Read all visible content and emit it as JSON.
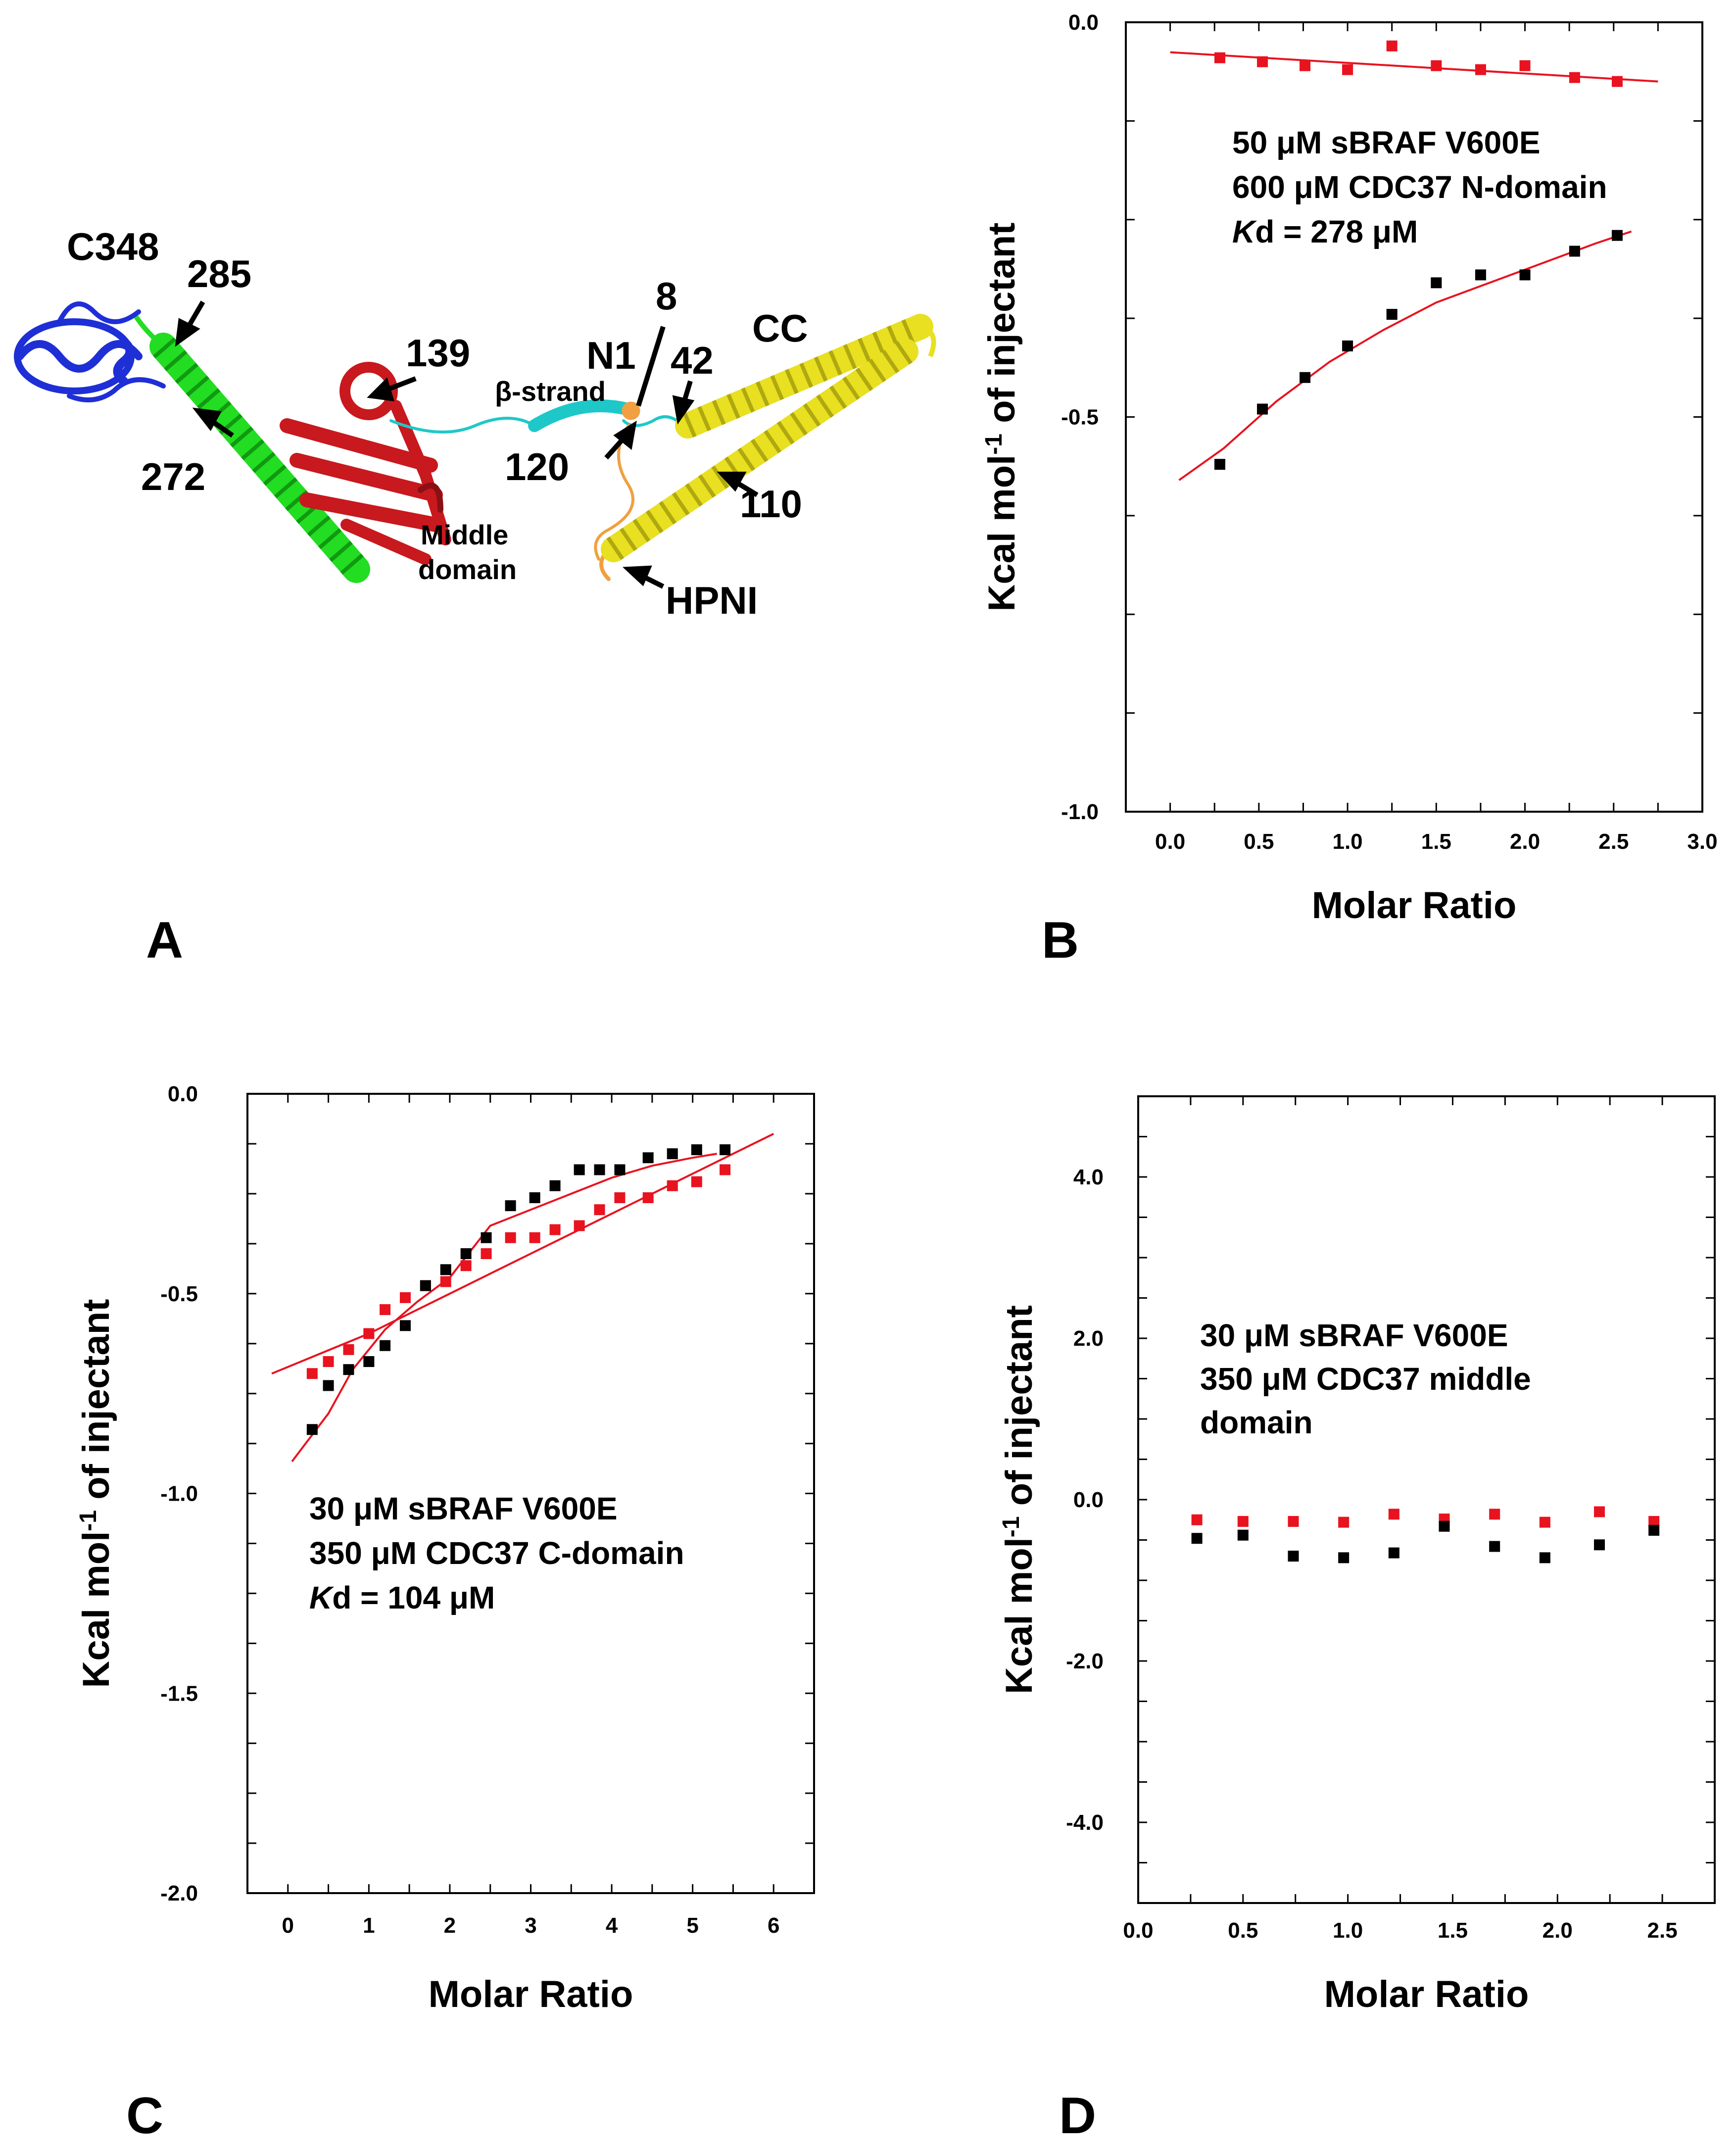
{
  "figure": {
    "panel_labels": [
      "A",
      "B",
      "C",
      "D"
    ]
  },
  "panel_a": {
    "labels": {
      "c348": "C348",
      "n285": "285",
      "n272": "272",
      "n139": "139",
      "beta": "β-strand",
      "n1": "N1",
      "n8": "8",
      "n42": "42",
      "cc": "CC",
      "n120": "120",
      "n110": "110",
      "middle1": "Middle",
      "middle2": "domain",
      "hpni": "HPNI"
    },
    "colors": {
      "c_domain": "#1f2fd6",
      "linker_helix": "#22dd22",
      "middle_domain": "#c8191e",
      "beta_strand": "#1ec8c8",
      "n_terminus": "#f0a040",
      "coiled_coil": "#e8e020"
    }
  },
  "chart_data": [
    {
      "panel": "B",
      "type": "scatter",
      "xlabel": "Molar Ratio",
      "ylabel": "Kcal mol-1 of injectant",
      "ylabel_parts": {
        "pre": "Kcal mol",
        "sup": "-1",
        "post": " of injectant"
      },
      "xlim": [
        -0.25,
        3.0
      ],
      "ylim": [
        -1.0,
        0.0
      ],
      "xticks": [
        0.0,
        0.5,
        1.0,
        1.5,
        2.0,
        2.5,
        3.0
      ],
      "xtick_labels": [
        "0.0",
        "0.5",
        "1.0",
        "1.5",
        "2.0",
        "2.5",
        "3.0"
      ],
      "yticks": [
        0.0,
        -0.5,
        -1.0
      ],
      "ytick_labels": [
        "0.0",
        "-0.5",
        "-1.0"
      ],
      "annotation": [
        "50 μM sBRAF V600E",
        "600 μM CDC37 N-domain",
        "Kd = 278 μM"
      ],
      "series": [
        {
          "name": "control",
          "color": "#e8131f",
          "x": [
            0.28,
            0.52,
            0.76,
            1.0,
            1.25,
            1.5,
            1.75,
            2.0,
            2.28,
            2.52
          ],
          "y": [
            -0.045,
            -0.05,
            -0.055,
            -0.06,
            -0.03,
            -0.055,
            -0.06,
            -0.055,
            -0.07,
            -0.075
          ]
        },
        {
          "name": "binding",
          "color": "#000000",
          "x": [
            0.28,
            0.52,
            0.76,
            1.0,
            1.25,
            1.5,
            1.75,
            2.0,
            2.28,
            2.52
          ],
          "y": [
            -0.56,
            -0.49,
            -0.45,
            -0.41,
            -0.37,
            -0.33,
            -0.32,
            -0.32,
            -0.29,
            -0.27
          ]
        }
      ],
      "fits": [
        {
          "name": "control-fit",
          "color": "#e8131f",
          "x": [
            0.0,
            2.75
          ],
          "y": [
            -0.038,
            -0.075
          ]
        },
        {
          "name": "binding-fit",
          "color": "#e8131f",
          "x": [
            0.05,
            0.3,
            0.6,
            0.9,
            1.2,
            1.5,
            1.8,
            2.1,
            2.4,
            2.6
          ],
          "y": [
            -0.58,
            -0.54,
            -0.48,
            -0.43,
            -0.39,
            -0.355,
            -0.33,
            -0.305,
            -0.28,
            -0.265
          ]
        }
      ]
    },
    {
      "panel": "C",
      "type": "scatter",
      "xlabel": "Molar Ratio",
      "ylabel": "Kcal mol-1 of injectant",
      "ylabel_parts": {
        "pre": "Kcal mol",
        "sup": "-1",
        "post": " of injectant"
      },
      "xlim": [
        -0.5,
        6.5
      ],
      "ylim": [
        -2.0,
        0.0
      ],
      "xticks": [
        0,
        1,
        2,
        3,
        4,
        5,
        6
      ],
      "xtick_labels": [
        "0",
        "1",
        "2",
        "3",
        "4",
        "5",
        "6"
      ],
      "yticks": [
        0.0,
        -0.5,
        -1.0,
        -1.5,
        -2.0
      ],
      "ytick_labels": [
        "0.0",
        "-0.5",
        "-1.0",
        "-1.5",
        "-2.0"
      ],
      "annotation": [
        "30 μM sBRAF V600E",
        "350 μM CDC37 C-domain",
        "Kd = 104 μM"
      ],
      "series": [
        {
          "name": "red",
          "color": "#e8131f",
          "x": [
            0.3,
            0.5,
            0.75,
            1.0,
            1.2,
            1.45,
            1.7,
            1.95,
            2.2,
            2.45,
            2.75,
            3.05,
            3.3,
            3.6,
            3.85,
            4.1,
            4.45,
            4.75,
            5.05,
            5.4
          ],
          "y": [
            -0.7,
            -0.67,
            -0.64,
            -0.6,
            -0.54,
            -0.51,
            -0.48,
            -0.47,
            -0.43,
            -0.4,
            -0.36,
            -0.36,
            -0.34,
            -0.33,
            -0.29,
            -0.26,
            -0.26,
            -0.23,
            -0.22,
            -0.19
          ]
        },
        {
          "name": "black",
          "color": "#000000",
          "x": [
            0.3,
            0.5,
            0.75,
            1.0,
            1.2,
            1.45,
            1.7,
            1.95,
            2.2,
            2.45,
            2.75,
            3.05,
            3.3,
            3.6,
            3.85,
            4.1,
            4.45,
            4.75,
            5.05,
            5.4
          ],
          "y": [
            -0.84,
            -0.73,
            -0.69,
            -0.67,
            -0.63,
            -0.58,
            -0.48,
            -0.44,
            -0.4,
            -0.36,
            -0.28,
            -0.26,
            -0.23,
            -0.19,
            -0.19,
            -0.19,
            -0.16,
            -0.15,
            -0.14,
            -0.14
          ]
        }
      ],
      "fits": [
        {
          "name": "red-fit",
          "color": "#e8131f",
          "x": [
            -0.2,
            1.0,
            2.0,
            3.0,
            4.0,
            5.0,
            6.0
          ],
          "y": [
            -0.7,
            -0.6,
            -0.5,
            -0.4,
            -0.3,
            -0.2,
            -0.1
          ]
        },
        {
          "name": "black-fit",
          "color": "#e8131f",
          "x": [
            0.05,
            0.5,
            0.8,
            1.2,
            1.6,
            2.0,
            2.5,
            3.0,
            3.5,
            4.0,
            4.5,
            5.0,
            5.3
          ],
          "y": [
            -0.92,
            -0.8,
            -0.69,
            -0.59,
            -0.52,
            -0.46,
            -0.33,
            -0.29,
            -0.25,
            -0.21,
            -0.18,
            -0.16,
            -0.15
          ]
        }
      ]
    },
    {
      "panel": "D",
      "type": "scatter",
      "xlabel": "Molar Ratio",
      "ylabel": "Kcal mol-1 of injectant",
      "ylabel_parts": {
        "pre": "Kcal mol",
        "sup": "-1",
        "post": " of injectant"
      },
      "xlim": [
        0.0,
        2.75
      ],
      "ylim": [
        -5.0,
        5.0
      ],
      "xticks": [
        0.0,
        0.5,
        1.0,
        1.5,
        2.0,
        2.5
      ],
      "xtick_labels": [
        "0.0",
        "0.5",
        "1.0",
        "1.5",
        "2.0",
        "2.5"
      ],
      "yticks": [
        4.0,
        2.0,
        0.0,
        -2.0,
        -4.0
      ],
      "ytick_labels": [
        "4.0",
        "2.0",
        "0.0",
        "-2.0",
        "-4.0"
      ],
      "annotation": [
        "30 μM sBRAF V600E",
        "350 μM CDC37 middle",
        "domain"
      ],
      "series": [
        {
          "name": "red",
          "color": "#e8131f",
          "x": [
            0.28,
            0.5,
            0.74,
            0.98,
            1.22,
            1.46,
            1.7,
            1.94,
            2.2,
            2.46
          ],
          "y": [
            -0.25,
            -0.27,
            -0.27,
            -0.28,
            -0.18,
            -0.24,
            -0.18,
            -0.28,
            -0.15,
            -0.27
          ]
        },
        {
          "name": "black",
          "color": "#000000",
          "x": [
            0.28,
            0.5,
            0.74,
            0.98,
            1.22,
            1.46,
            1.7,
            1.94,
            2.2,
            2.46
          ],
          "y": [
            -0.48,
            -0.44,
            -0.7,
            -0.72,
            -0.66,
            -0.33,
            -0.58,
            -0.72,
            -0.56,
            -0.38
          ]
        }
      ],
      "fits": []
    }
  ]
}
